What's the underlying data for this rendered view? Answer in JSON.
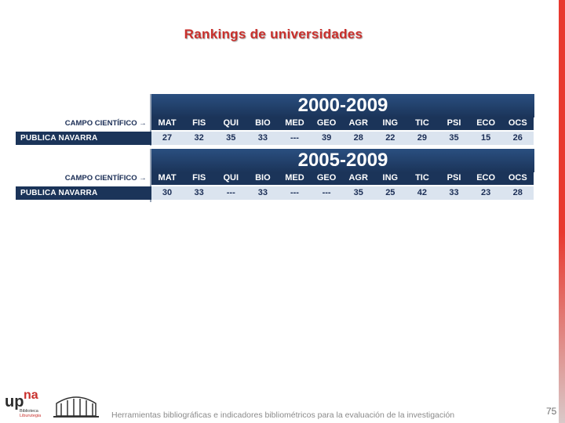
{
  "title": "Rankings de universidades",
  "tables": [
    {
      "period": "2000-2009",
      "header_label": "CAMPO CIENTÍFICO →",
      "columns": [
        "MAT",
        "FIS",
        "QUI",
        "BIO",
        "MED",
        "GEO",
        "AGR",
        "ING",
        "TIC",
        "PSI",
        "ECO",
        "OCS"
      ],
      "row_label": "PUBLICA NAVARRA",
      "values": [
        "27",
        "32",
        "35",
        "33",
        "---",
        "39",
        "28",
        "22",
        "29",
        "35",
        "15",
        "26"
      ]
    },
    {
      "period": "2005-2009",
      "header_label": "CAMPO CIENTÍFICO →",
      "columns": [
        "MAT",
        "FIS",
        "QUI",
        "BIO",
        "MED",
        "GEO",
        "AGR",
        "ING",
        "TIC",
        "PSI",
        "ECO",
        "OCS"
      ],
      "row_label": "PUBLICA NAVARRA",
      "values": [
        "30",
        "33",
        "---",
        "33",
        "---",
        "---",
        "35",
        "25",
        "42",
        "33",
        "23",
        "28"
      ]
    }
  ],
  "footer": "Herramientas bibliográficas e indicadores bibliométricos para la evaluación de la investigación",
  "page_number": "75",
  "logo": {
    "up": "up",
    "na": "na",
    "line1": "Biblioteca",
    "line2": "Liburutegia"
  },
  "colors": {
    "accent": "#c9302c",
    "navy": "#1b3459",
    "row_fill": "#dbe4ef"
  }
}
